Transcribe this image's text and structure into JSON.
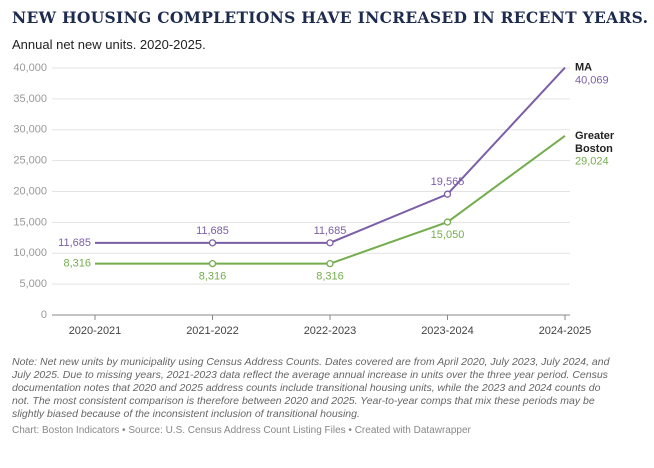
{
  "chart_data": {
    "type": "line",
    "title": "NEW HOUSING COMPLETIONS HAVE INCREASED IN RECENT YEARS.",
    "subtitle": "Annual net new units. 2020-2025.",
    "categories": [
      "2020-2021",
      "2021-2022",
      "2022-2023",
      "2023-2024",
      "2024-2025"
    ],
    "series": [
      {
        "name": "MA",
        "color": "#7b5ea7",
        "values": [
          11685,
          11685,
          11685,
          19565,
          40069
        ],
        "value_labels": [
          "11,685",
          "11,685",
          "11,685",
          "19,565",
          "40,069"
        ]
      },
      {
        "name": "Greater Boston",
        "color": "#74ad4d",
        "values": [
          8316,
          8316,
          8316,
          15050,
          29024
        ],
        "value_labels": [
          "8,316",
          "8,316",
          "8,316",
          "15,050",
          "29,024"
        ]
      }
    ],
    "ylim": [
      0,
      40000
    ],
    "yticks": [
      0,
      {
        "value": 5000,
        "label": "5,000"
      },
      {
        "value": 10000,
        "label": "10,000"
      },
      {
        "value": 15000,
        "label": "15,000"
      },
      {
        "value": 20000,
        "label": "20,000"
      },
      {
        "value": 25000,
        "label": "25,000"
      },
      {
        "value": 30000,
        "label": "30,000"
      },
      {
        "value": 35000,
        "label": "35,000"
      },
      {
        "value": 40000,
        "label": "40,000"
      }
    ],
    "grid": true,
    "note": "Note: Net new units by municipality using Census Address Counts. Dates covered are from April 2020, July 2023, July 2024, and July 2025. Due to missing years, 2021-2023 data reflect the average annual increase in units over the three year period. Census documentation notes that 2020 and 2025 address counts include transitional housing units, while the 2023 and 2024 counts do not. The most consistent comparison is therefore between 2020 and 2025. Year-to-year comps that mix these periods may be slightly biased because of the inconsistent inclusion of transitional housing.",
    "source": "Chart: Boston Indicators • Source: U.S. Census Address Count Listing Files • Created with Datawrapper"
  }
}
